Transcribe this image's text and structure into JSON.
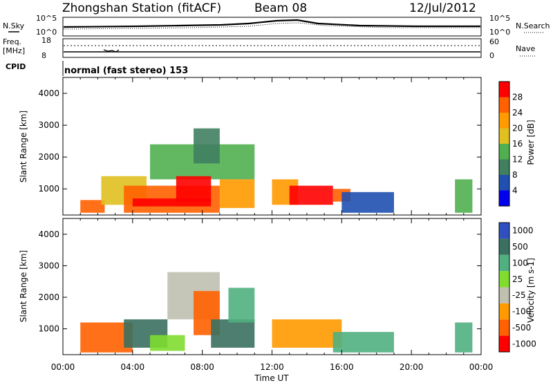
{
  "header": {
    "title": "Zhongshan Station (fitACF)",
    "beam": "Beam 08",
    "date": "12/Jul/2012"
  },
  "summary_panels": {
    "nsky_label": "N.Sky",
    "nsky_ticks": [
      "10^5",
      "10^0"
    ],
    "nsearch_label": "N.Search",
    "nsearch_ticks": [
      "10^5",
      "10^0"
    ],
    "freq_label_line1": "Freq.",
    "freq_label_line2": "[MHz]",
    "freq_ticks": [
      "18",
      "8"
    ],
    "nave_label": "Nave",
    "nave_ticks": [
      "60",
      "0"
    ],
    "cpid_label": "CPID",
    "cpid_text": "normal (fast stereo) 153"
  },
  "colors": {
    "power": [
      "#0000ee",
      "#2050b0",
      "#408060",
      "#50b050",
      "#e0c020",
      "#ff9a00",
      "#ff6000",
      "#ff0000"
    ],
    "velocity": [
      "#3050c0",
      "#3a7060",
      "#50b080",
      "#80dd30",
      "#c0c0b0",
      "#ff9a00",
      "#ff6000",
      "#ff0000"
    ]
  },
  "chart_data": [
    {
      "type": "heatmap",
      "name": "Power",
      "xlabel": "Time UT",
      "ylabel": "Slant Range [km]",
      "xlim": [
        "00:00",
        "24:00"
      ],
      "ylim": [
        180,
        4500
      ],
      "xticks": [
        "00:00",
        "04:00",
        "08:00",
        "12:00",
        "16:00",
        "20:00",
        "00:00"
      ],
      "yticks": [
        "1000",
        "2000",
        "3000",
        "4000"
      ],
      "colorbar_label": "Power [dB]",
      "colorbar_ticks": [
        "4",
        "8",
        "12",
        "16",
        "20",
        "24",
        "28"
      ],
      "regions": [
        {
          "t": [
            1.0,
            2.4
          ],
          "r": [
            250,
            650
          ],
          "level": 6
        },
        {
          "t": [
            2.2,
            4.8
          ],
          "r": [
            500,
            1400
          ],
          "level": 4
        },
        {
          "t": [
            3.5,
            9.0
          ],
          "r": [
            250,
            1100
          ],
          "level": 6
        },
        {
          "t": [
            4.0,
            8.5
          ],
          "r": [
            450,
            700
          ],
          "level": 7
        },
        {
          "t": [
            5.0,
            11.0
          ],
          "r": [
            1300,
            2400
          ],
          "level": 3
        },
        {
          "t": [
            6.5,
            8.5
          ],
          "r": [
            600,
            1400
          ],
          "level": 7
        },
        {
          "t": [
            7.5,
            9.0
          ],
          "r": [
            1800,
            2900
          ],
          "level": 2
        },
        {
          "t": [
            9.0,
            11.0
          ],
          "r": [
            400,
            1300
          ],
          "level": 5
        },
        {
          "t": [
            12.0,
            13.5
          ],
          "r": [
            500,
            1300
          ],
          "level": 5
        },
        {
          "t": [
            13.0,
            15.5
          ],
          "r": [
            500,
            1100
          ],
          "level": 7
        },
        {
          "t": [
            15.5,
            16.5
          ],
          "r": [
            600,
            1000
          ],
          "level": 6
        },
        {
          "t": [
            16.0,
            19.0
          ],
          "r": [
            250,
            900
          ],
          "level": 1
        },
        {
          "t": [
            22.5,
            23.5
          ],
          "r": [
            250,
            1300
          ],
          "level": 3
        }
      ]
    },
    {
      "type": "heatmap",
      "name": "Velocity",
      "xlabel": "Time UT",
      "ylabel": "Slant Range [km]",
      "xlim": [
        "00:00",
        "24:00"
      ],
      "ylim": [
        180,
        4500
      ],
      "xticks": [
        "00:00",
        "04:00",
        "08:00",
        "12:00",
        "16:00",
        "20:00",
        "00:00"
      ],
      "yticks": [
        "1000",
        "2000",
        "3000",
        "4000"
      ],
      "colorbar_label": "Velocity [m s-1]",
      "colorbar_ticks": [
        "1000",
        "500",
        "100",
        "25",
        "-25",
        "-100",
        "-500",
        "-1000"
      ],
      "regions": [
        {
          "t": [
            1.0,
            4.0
          ],
          "r": [
            250,
            1200
          ],
          "level": 6
        },
        {
          "t": [
            3.5,
            6.0
          ],
          "r": [
            400,
            1300
          ],
          "level": 1
        },
        {
          "t": [
            5.0,
            7.0
          ],
          "r": [
            300,
            800
          ],
          "level": 3
        },
        {
          "t": [
            6.0,
            9.0
          ],
          "r": [
            1300,
            2800
          ],
          "level": 4
        },
        {
          "t": [
            7.5,
            9.0
          ],
          "r": [
            800,
            2200
          ],
          "level": 6
        },
        {
          "t": [
            8.5,
            11.0
          ],
          "r": [
            400,
            1300
          ],
          "level": 1
        },
        {
          "t": [
            9.5,
            11.0
          ],
          "r": [
            1200,
            2300
          ],
          "level": 2
        },
        {
          "t": [
            12.0,
            16.0
          ],
          "r": [
            400,
            1300
          ],
          "level": 5
        },
        {
          "t": [
            15.5,
            19.0
          ],
          "r": [
            250,
            900
          ],
          "level": 2
        },
        {
          "t": [
            22.5,
            23.5
          ],
          "r": [
            250,
            1200
          ],
          "level": 2
        }
      ]
    }
  ]
}
